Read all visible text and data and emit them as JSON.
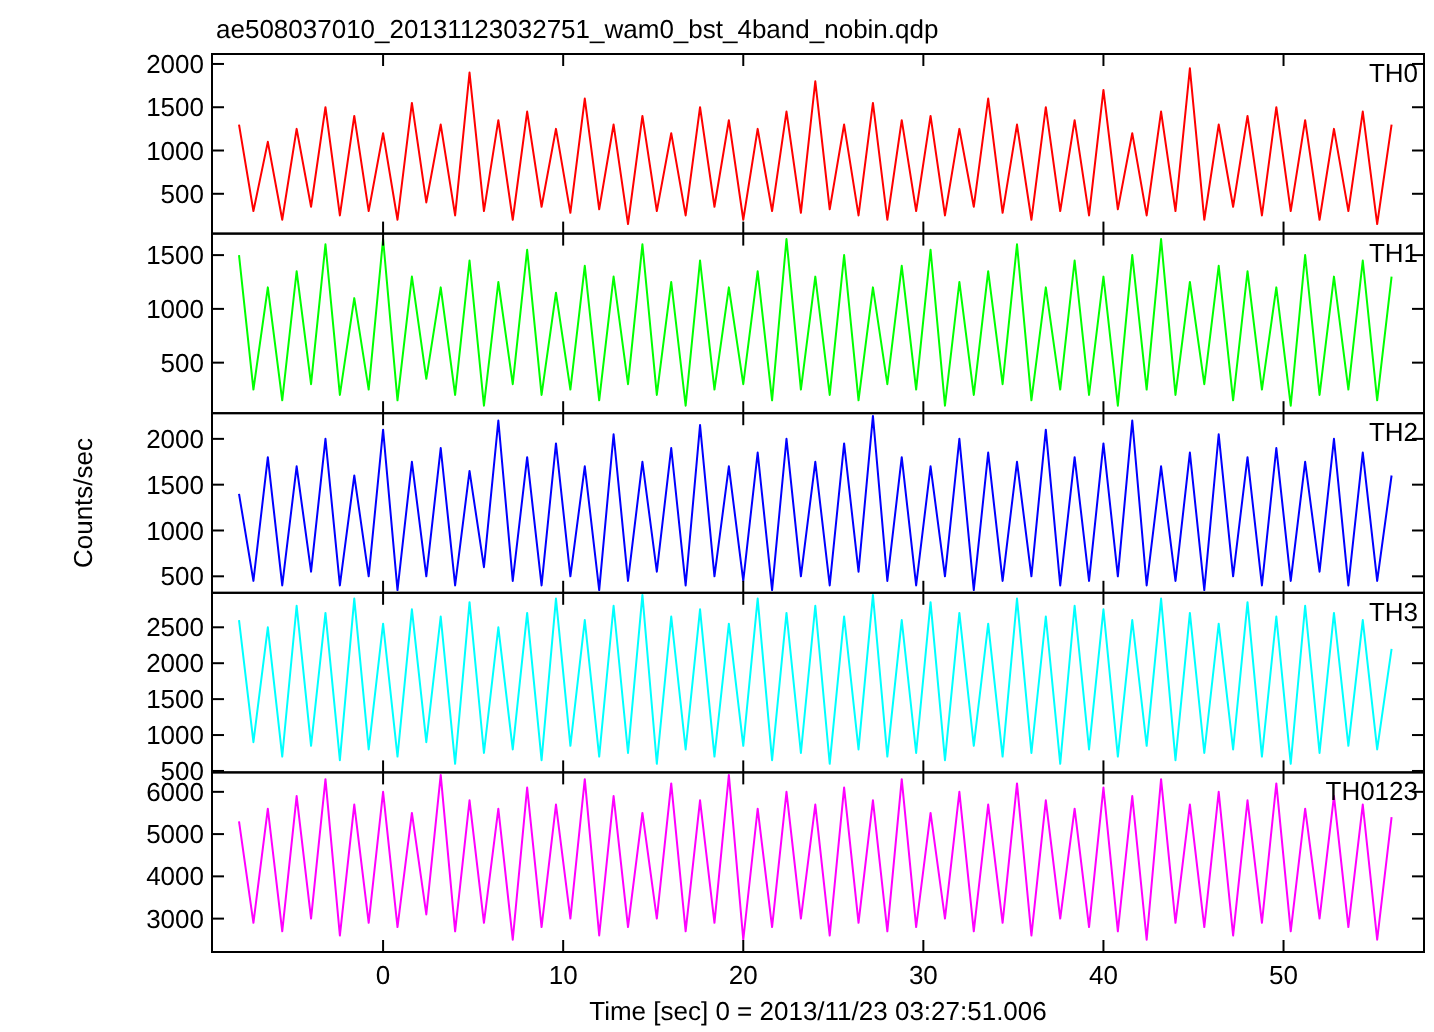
{
  "chart_data": [
    {
      "type": "line",
      "title": "ae508037010_20131123032751_wam0_bst_4band_nobin.qdp",
      "tick_labels": "y",
      "xlim": [
        -9.5,
        57.8
      ],
      "xticks": [
        0,
        10,
        20,
        30,
        40,
        50
      ],
      "ylim": [
        40,
        2115
      ],
      "yticks": [
        500,
        1000,
        1500,
        2000
      ],
      "x": [
        -8,
        -7.2,
        -6.4,
        -5.6,
        -4.8,
        -4,
        -3.2,
        -2.4,
        -1.6,
        -0.8,
        0,
        0.8,
        1.6,
        2.4,
        3.2,
        4,
        4.8,
        5.6,
        6.4,
        7.2,
        8,
        8.8,
        9.6,
        10.4,
        11.2,
        12,
        12.8,
        13.6,
        14.4,
        15.2,
        16,
        16.8,
        17.6,
        18.4,
        19.2,
        20,
        20.8,
        21.6,
        22.4,
        23.2,
        24,
        24.8,
        25.6,
        26.4,
        27.2,
        28,
        28.8,
        29.6,
        30.4,
        31.2,
        32,
        32.8,
        33.6,
        34.4,
        35.2,
        36,
        36.8,
        37.6,
        38.4,
        39.2,
        40,
        40.8,
        41.6,
        42.4,
        43.2,
        44,
        44.8,
        45.6,
        46.4,
        47.2,
        48,
        48.8,
        49.6,
        50.4,
        51.2,
        52,
        52.8,
        53.6,
        54.4,
        55.2,
        56
      ],
      "series": [
        {
          "name": "TH0",
          "color": "#ff0000",
          "values": [
            1300,
            300,
            1100,
            200,
            1250,
            350,
            1500,
            250,
            1400,
            300,
            1200,
            200,
            1550,
            400,
            1300,
            250,
            1900,
            300,
            1350,
            200,
            1450,
            350,
            1250,
            280,
            1600,
            320,
            1300,
            150,
            1400,
            300,
            1200,
            250,
            1500,
            350,
            1350,
            200,
            1250,
            300,
            1450,
            280,
            1800,
            320,
            1300,
            250,
            1550,
            200,
            1350,
            300,
            1400,
            250,
            1250,
            350,
            1600,
            280,
            1300,
            200,
            1500,
            300,
            1350,
            250,
            1700,
            320,
            1200,
            250,
            1450,
            300,
            1950,
            200,
            1300,
            350,
            1400,
            250,
            1500,
            300,
            1350,
            200,
            1250,
            300,
            1450,
            150,
            1300
          ]
        }
      ]
    },
    {
      "type": "line",
      "tick_labels": "y",
      "xlim": [
        -9.5,
        57.8
      ],
      "xticks": [
        0,
        10,
        20,
        30,
        40,
        50
      ],
      "ylim": [
        30,
        1700
      ],
      "yticks": [
        500,
        1000,
        1500
      ],
      "x": [
        -8,
        -7.2,
        -6.4,
        -5.6,
        -4.8,
        -4,
        -3.2,
        -2.4,
        -1.6,
        -0.8,
        0,
        0.8,
        1.6,
        2.4,
        3.2,
        4,
        4.8,
        5.6,
        6.4,
        7.2,
        8,
        8.8,
        9.6,
        10.4,
        11.2,
        12,
        12.8,
        13.6,
        14.4,
        15.2,
        16,
        16.8,
        17.6,
        18.4,
        19.2,
        20,
        20.8,
        21.6,
        22.4,
        23.2,
        24,
        24.8,
        25.6,
        26.4,
        27.2,
        28,
        28.8,
        29.6,
        30.4,
        31.2,
        32,
        32.8,
        33.6,
        34.4,
        35.2,
        36,
        36.8,
        37.6,
        38.4,
        39.2,
        40,
        40.8,
        41.6,
        42.4,
        43.2,
        44,
        44.8,
        45.6,
        46.4,
        47.2,
        48,
        48.8,
        49.6,
        50.4,
        51.2,
        52,
        52.8,
        53.6,
        54.4,
        55.2,
        56
      ],
      "series": [
        {
          "name": "TH1",
          "color": "#00ff00",
          "values": [
            1500,
            250,
            1200,
            150,
            1350,
            300,
            1600,
            200,
            1100,
            250,
            1650,
            150,
            1300,
            350,
            1200,
            200,
            1450,
            100,
            1250,
            300,
            1550,
            200,
            1150,
            250,
            1400,
            150,
            1300,
            300,
            1600,
            200,
            1250,
            100,
            1450,
            250,
            1200,
            300,
            1350,
            150,
            1650,
            250,
            1300,
            200,
            1500,
            150,
            1200,
            300,
            1400,
            250,
            1550,
            100,
            1250,
            200,
            1350,
            300,
            1600,
            150,
            1200,
            250,
            1450,
            200,
            1300,
            100,
            1500,
            250,
            1650,
            200,
            1250,
            300,
            1400,
            150,
            1350,
            250,
            1200,
            100,
            1500,
            200,
            1300,
            250,
            1450,
            150,
            1300
          ]
        }
      ]
    },
    {
      "type": "line",
      "tick_labels": "y",
      "ylabel": "Counts/sec",
      "xlim": [
        -9.5,
        57.8
      ],
      "xticks": [
        0,
        10,
        20,
        30,
        40,
        50
      ],
      "ylim": [
        320,
        2280
      ],
      "yticks": [
        500,
        1000,
        1500,
        2000
      ],
      "x": [
        -8,
        -7.2,
        -6.4,
        -5.6,
        -4.8,
        -4,
        -3.2,
        -2.4,
        -1.6,
        -0.8,
        0,
        0.8,
        1.6,
        2.4,
        3.2,
        4,
        4.8,
        5.6,
        6.4,
        7.2,
        8,
        8.8,
        9.6,
        10.4,
        11.2,
        12,
        12.8,
        13.6,
        14.4,
        15.2,
        16,
        16.8,
        17.6,
        18.4,
        19.2,
        20,
        20.8,
        21.6,
        22.4,
        23.2,
        24,
        24.8,
        25.6,
        26.4,
        27.2,
        28,
        28.8,
        29.6,
        30.4,
        31.2,
        32,
        32.8,
        33.6,
        34.4,
        35.2,
        36,
        36.8,
        37.6,
        38.4,
        39.2,
        40,
        40.8,
        41.6,
        42.4,
        43.2,
        44,
        44.8,
        45.6,
        46.4,
        47.2,
        48,
        48.8,
        49.6,
        50.4,
        51.2,
        52,
        52.8,
        53.6,
        54.4,
        55.2,
        56
      ],
      "series": [
        {
          "name": "TH2",
          "color": "#0000ff",
          "values": [
            1400,
            450,
            1800,
            400,
            1700,
            550,
            2000,
            400,
            1600,
            500,
            2100,
            350,
            1750,
            500,
            1900,
            400,
            1650,
            600,
            2200,
            450,
            1800,
            400,
            1950,
            500,
            1700,
            350,
            2050,
            450,
            1750,
            550,
            1900,
            400,
            2150,
            500,
            1700,
            450,
            1850,
            350,
            2000,
            500,
            1750,
            400,
            1950,
            550,
            2250,
            450,
            1800,
            400,
            1700,
            500,
            2000,
            350,
            1850,
            450,
            1750,
            500,
            2100,
            400,
            1800,
            450,
            1950,
            500,
            2200,
            400,
            1700,
            450,
            1850,
            350,
            2050,
            500,
            1800,
            400,
            1900,
            450,
            1750,
            550,
            2000,
            400,
            1850,
            450,
            1600
          ]
        }
      ]
    },
    {
      "type": "line",
      "tick_labels": "y",
      "xlim": [
        -9.5,
        57.8
      ],
      "xticks": [
        0,
        10,
        20,
        30,
        40,
        50
      ],
      "ylim": [
        480,
        2980
      ],
      "yticks": [
        500,
        1000,
        1500,
        2000,
        2500
      ],
      "x": [
        -8,
        -7.2,
        -6.4,
        -5.6,
        -4.8,
        -4,
        -3.2,
        -2.4,
        -1.6,
        -0.8,
        0,
        0.8,
        1.6,
        2.4,
        3.2,
        4,
        4.8,
        5.6,
        6.4,
        7.2,
        8,
        8.8,
        9.6,
        10.4,
        11.2,
        12,
        12.8,
        13.6,
        14.4,
        15.2,
        16,
        16.8,
        17.6,
        18.4,
        19.2,
        20,
        20.8,
        21.6,
        22.4,
        23.2,
        24,
        24.8,
        25.6,
        26.4,
        27.2,
        28,
        28.8,
        29.6,
        30.4,
        31.2,
        32,
        32.8,
        33.6,
        34.4,
        35.2,
        36,
        36.8,
        37.6,
        38.4,
        39.2,
        40,
        40.8,
        41.6,
        42.4,
        43.2,
        44,
        44.8,
        45.6,
        46.4,
        47.2,
        48,
        48.8,
        49.6,
        50.4,
        51.2,
        52,
        52.8,
        53.6,
        54.4,
        55.2,
        56
      ],
      "series": [
        {
          "name": "TH3",
          "color": "#00ffff",
          "values": [
            2600,
            900,
            2500,
            700,
            2800,
            850,
            2700,
            650,
            2900,
            800,
            2550,
            700,
            2750,
            900,
            2650,
            600,
            2850,
            750,
            2500,
            800,
            2700,
            650,
            2900,
            850,
            2600,
            700,
            2800,
            750,
            2950,
            600,
            2650,
            800,
            2750,
            700,
            2550,
            850,
            2900,
            650,
            2700,
            750,
            2800,
            600,
            2650,
            800,
            2950,
            700,
            2600,
            750,
            2850,
            650,
            2700,
            850,
            2550,
            700,
            2900,
            750,
            2650,
            600,
            2800,
            800,
            2750,
            700,
            2600,
            850,
            2900,
            650,
            2700,
            750,
            2550,
            800,
            2850,
            700,
            2650,
            600,
            2800,
            750,
            2700,
            850,
            2600,
            800,
            2200
          ]
        }
      ]
    },
    {
      "type": "line",
      "xlabel": "Time [sec] 0 = 2013/11/23 03:27:51.006",
      "xlim": [
        -9.5,
        57.8
      ],
      "xticks": [
        0,
        10,
        20,
        30,
        40,
        50
      ],
      "ylim": [
        2210,
        6460
      ],
      "yticks": [
        3000,
        4000,
        5000,
        6000
      ],
      "x": [
        -8,
        -7.2,
        -6.4,
        -5.6,
        -4.8,
        -4,
        -3.2,
        -2.4,
        -1.6,
        -0.8,
        0,
        0.8,
        1.6,
        2.4,
        3.2,
        4,
        4.8,
        5.6,
        6.4,
        7.2,
        8,
        8.8,
        9.6,
        10.4,
        11.2,
        12,
        12.8,
        13.6,
        14.4,
        15.2,
        16,
        16.8,
        17.6,
        18.4,
        19.2,
        20,
        20.8,
        21.6,
        22.4,
        23.2,
        24,
        24.8,
        25.6,
        26.4,
        27.2,
        28,
        28.8,
        29.6,
        30.4,
        31.2,
        32,
        32.8,
        33.6,
        34.4,
        35.2,
        36,
        36.8,
        37.6,
        38.4,
        39.2,
        40,
        40.8,
        41.6,
        42.4,
        43.2,
        44,
        44.8,
        45.6,
        46.4,
        47.2,
        48,
        48.8,
        49.6,
        50.4,
        51.2,
        52,
        52.8,
        53.6,
        54.4,
        55.2,
        56
      ],
      "series": [
        {
          "name": "TH0123",
          "color": "#ff00ff",
          "values": [
            5300,
            2900,
            5600,
            2700,
            5900,
            3000,
            6300,
            2600,
            5700,
            2900,
            6000,
            2800,
            5500,
            3100,
            6400,
            2700,
            5800,
            2900,
            5600,
            2500,
            6100,
            2800,
            5700,
            3000,
            6300,
            2600,
            5900,
            2800,
            5500,
            3000,
            6200,
            2700,
            5800,
            2900,
            6400,
            2500,
            5600,
            2800,
            6000,
            3000,
            5700,
            2600,
            6100,
            2900,
            5800,
            2700,
            6300,
            2800,
            5500,
            3000,
            6000,
            2700,
            5700,
            2900,
            6200,
            2600,
            5800,
            3000,
            5600,
            2800,
            6100,
            2700,
            5900,
            2500,
            6300,
            2900,
            5700,
            2800,
            6000,
            2600,
            5800,
            2900,
            6200,
            2700,
            5600,
            3000,
            5900,
            2800,
            5700,
            2500,
            5400
          ]
        }
      ]
    }
  ]
}
